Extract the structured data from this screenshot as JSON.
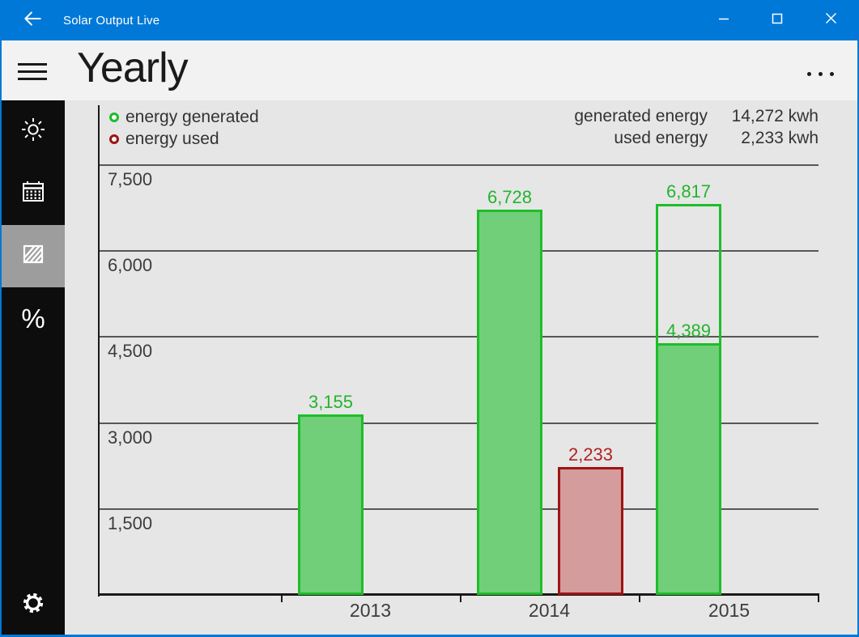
{
  "titlebar": {
    "title": "Solar Output Live"
  },
  "header": {
    "title": "Yearly"
  },
  "sidebar": {
    "items": [
      {
        "icon": "sun",
        "selected": false
      },
      {
        "icon": "calendar",
        "selected": false
      },
      {
        "icon": "solar-panel",
        "selected": true
      },
      {
        "icon": "percent",
        "selected": false
      }
    ],
    "footer_icon": "gear"
  },
  "legend": {
    "items": [
      {
        "label": "energy generated",
        "color": "#1dbe28"
      },
      {
        "label": "energy used",
        "color": "#9e1414"
      }
    ]
  },
  "stats": {
    "rows": [
      {
        "label": "generated energy",
        "value": "14,272 kwh"
      },
      {
        "label": "used energy",
        "value": "2,233 kwh"
      }
    ]
  },
  "chart_data": {
    "type": "bar",
    "categories": [
      "2013",
      "2014",
      "2015"
    ],
    "series": [
      {
        "name": "energy generated",
        "color": "#1dbe28",
        "fill": "#70cf78",
        "label_color": "#23b42d",
        "values": [
          3155,
          6728,
          6817
        ]
      },
      {
        "name": "energy used",
        "color": "#9e1414",
        "fill": "#d49c9c",
        "label_color": "#b22222",
        "values": [
          null,
          2233,
          null
        ]
      }
    ],
    "partial_fill": {
      "category_index": 2,
      "series_index": 0,
      "value": 4389
    },
    "y_ticks": [
      1500,
      3000,
      4500,
      6000,
      7500
    ],
    "ylim": [
      0,
      7950
    ],
    "unit": "kwh",
    "grid": true,
    "legend_position": "top-left",
    "totals": {
      "generated_kwh": 14272,
      "used_kwh": 2233
    }
  }
}
